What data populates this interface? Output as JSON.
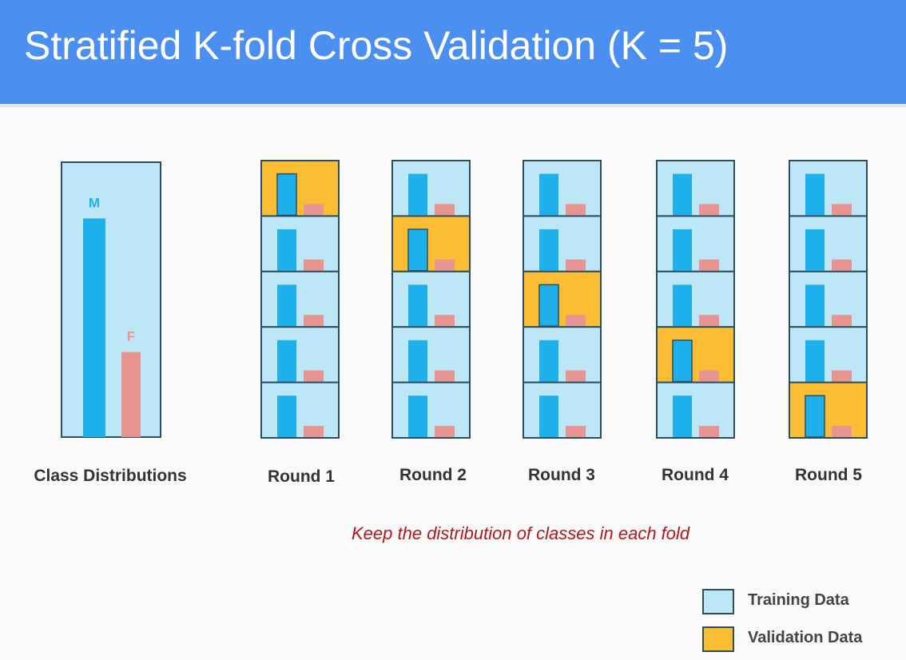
{
  "header": {
    "title": "Stratified K-fold Cross Validation (K = 5)"
  },
  "colors": {
    "header_bg": "#4b8ff1",
    "training": "#bde6f7",
    "validation": "#fbbd33",
    "class_m": "#1eb0ea",
    "class_f": "#e89592",
    "border": "#2b4f5e",
    "note": "#b0181d"
  },
  "distribution": {
    "caption": "Class Distributions",
    "classes": [
      {
        "label": "M",
        "share": 0.72
      },
      {
        "label": "F",
        "share": 0.28
      }
    ]
  },
  "rounds": [
    {
      "label": "Round 1",
      "validation_fold": 1
    },
    {
      "label": "Round 2",
      "validation_fold": 2
    },
    {
      "label": "Round 3",
      "validation_fold": 3
    },
    {
      "label": "Round 4",
      "validation_fold": 4
    },
    {
      "label": "Round 5",
      "validation_fold": 5
    }
  ],
  "folds_per_round": 5,
  "note": "Keep the distribution of classes in each fold",
  "legend": [
    {
      "label": "Training Data",
      "color": "#bde6f7"
    },
    {
      "label": "Validation Data",
      "color": "#fbbd33"
    }
  ]
}
